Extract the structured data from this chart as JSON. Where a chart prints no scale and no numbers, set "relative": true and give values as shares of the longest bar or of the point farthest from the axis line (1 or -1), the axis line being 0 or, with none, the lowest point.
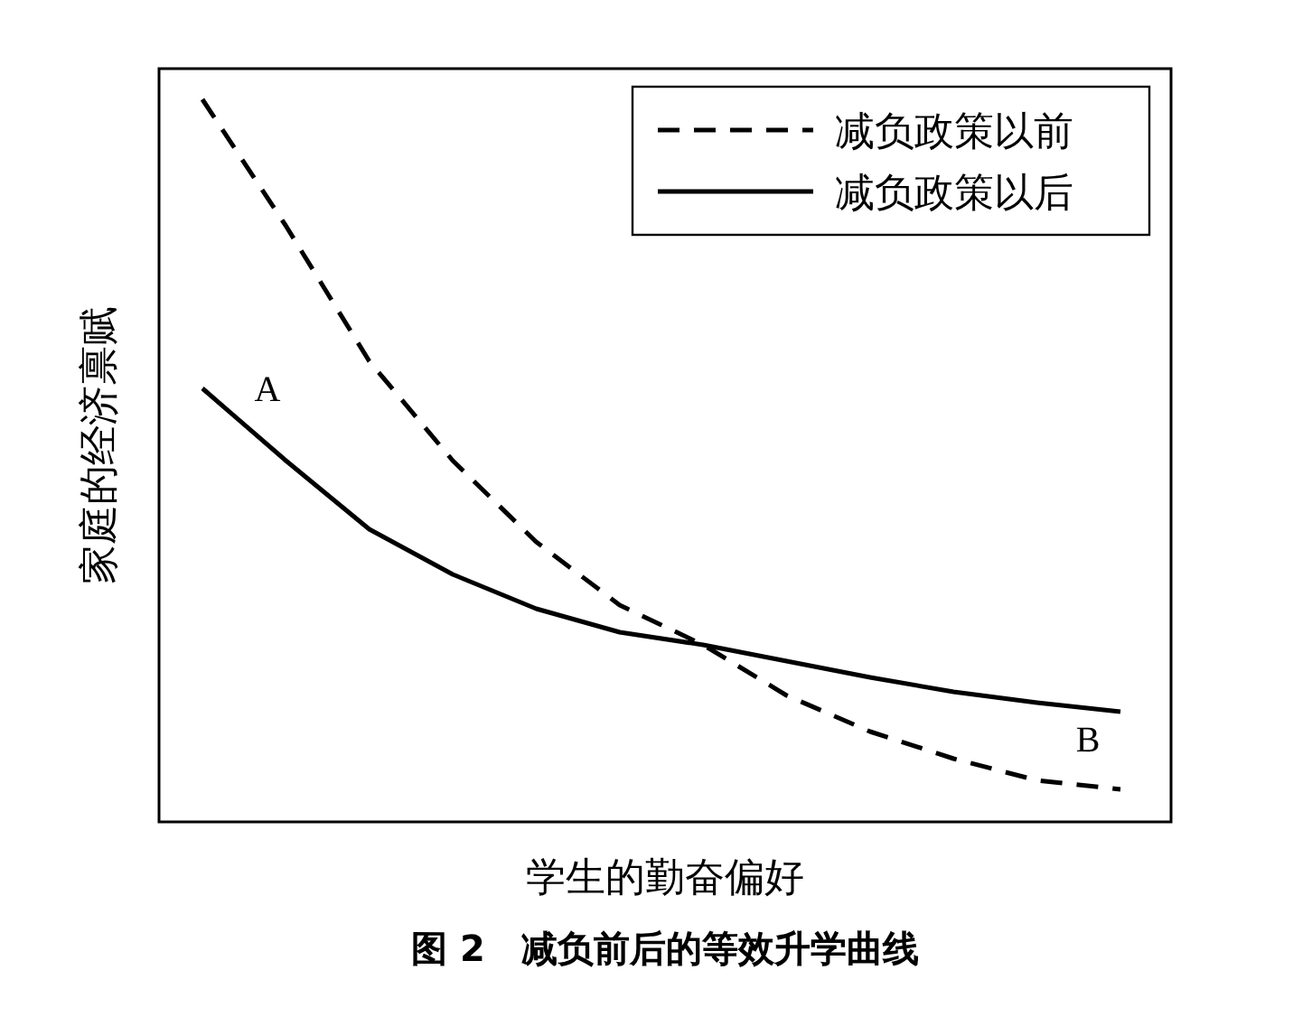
{
  "chart_data": {
    "type": "line",
    "title": "图 2　减负前后的等效升学曲线",
    "xlabel": "学生的勤奋偏好",
    "ylabel": "家庭的经济禀赋",
    "relative": true,
    "legend": "top right",
    "categories": [
      null,
      null,
      null,
      null,
      null,
      null,
      null,
      null,
      null,
      null,
      null,
      null
    ],
    "series": [
      {
        "name": "减负政策以前",
        "color": "#000000",
        "line_style": "dashed",
        "values": [
          1,
          0.825,
          0.6375,
          0.5,
          0.3875,
          0.3,
          0.245,
          0.175,
          0.125,
          0.0875,
          0.0575,
          0.045
        ]
      },
      {
        "name": "减负政策以后",
        "color": "#000000",
        "line_style": "solid",
        "values": [
          0.6,
          0.5,
          0.405,
          0.3425,
          0.295,
          0.2625,
          0.245,
          0.2225,
          0.2,
          0.18,
          0.165,
          0.1525
        ]
      }
    ],
    "annotations": [
      "A",
      "B"
    ]
  }
}
